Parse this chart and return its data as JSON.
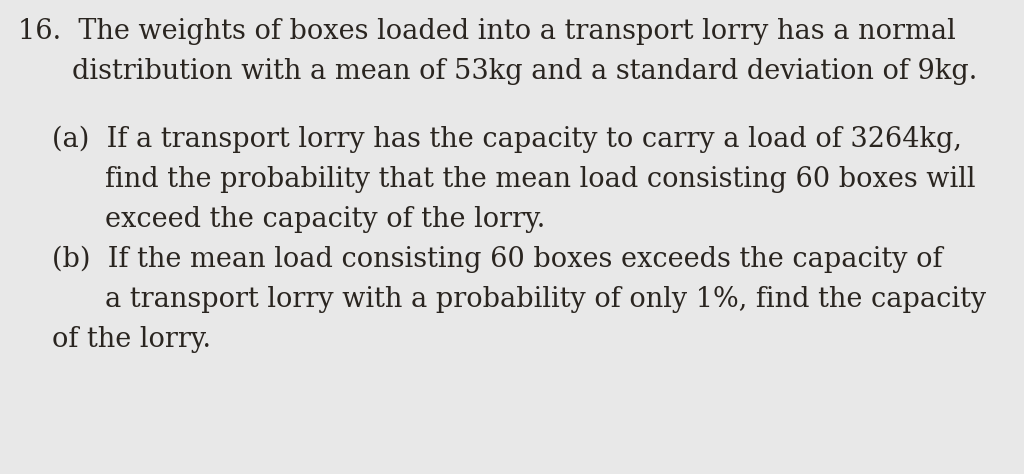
{
  "background_color": "#e8e8e8",
  "text_color": "#2a2520",
  "q_num": "16.",
  "line1": "The weights of boxes loaded into a transport lorry has a normal",
  "line2": "distribution with a mean of 53kg and a standard deviation of 9kg.",
  "part_a_label": "(a)",
  "part_a_line1": "If a transport lorry has the capacity to carry a load of 3264kg,",
  "part_a_line2": "find the probability that the mean load consisting 60 boxes will",
  "part_a_line3": "exceed the capacity of the lorry.",
  "part_b_label": "(b)",
  "part_b_line1": "If the mean load consisting 60 boxes exceeds the capacity of",
  "part_b_line2": "a transport lorry with a probability of only 1%, find the capacity",
  "part_b_line3": "of the lorry.",
  "font_size": 19.5,
  "font_family": "DejaVu Serif"
}
